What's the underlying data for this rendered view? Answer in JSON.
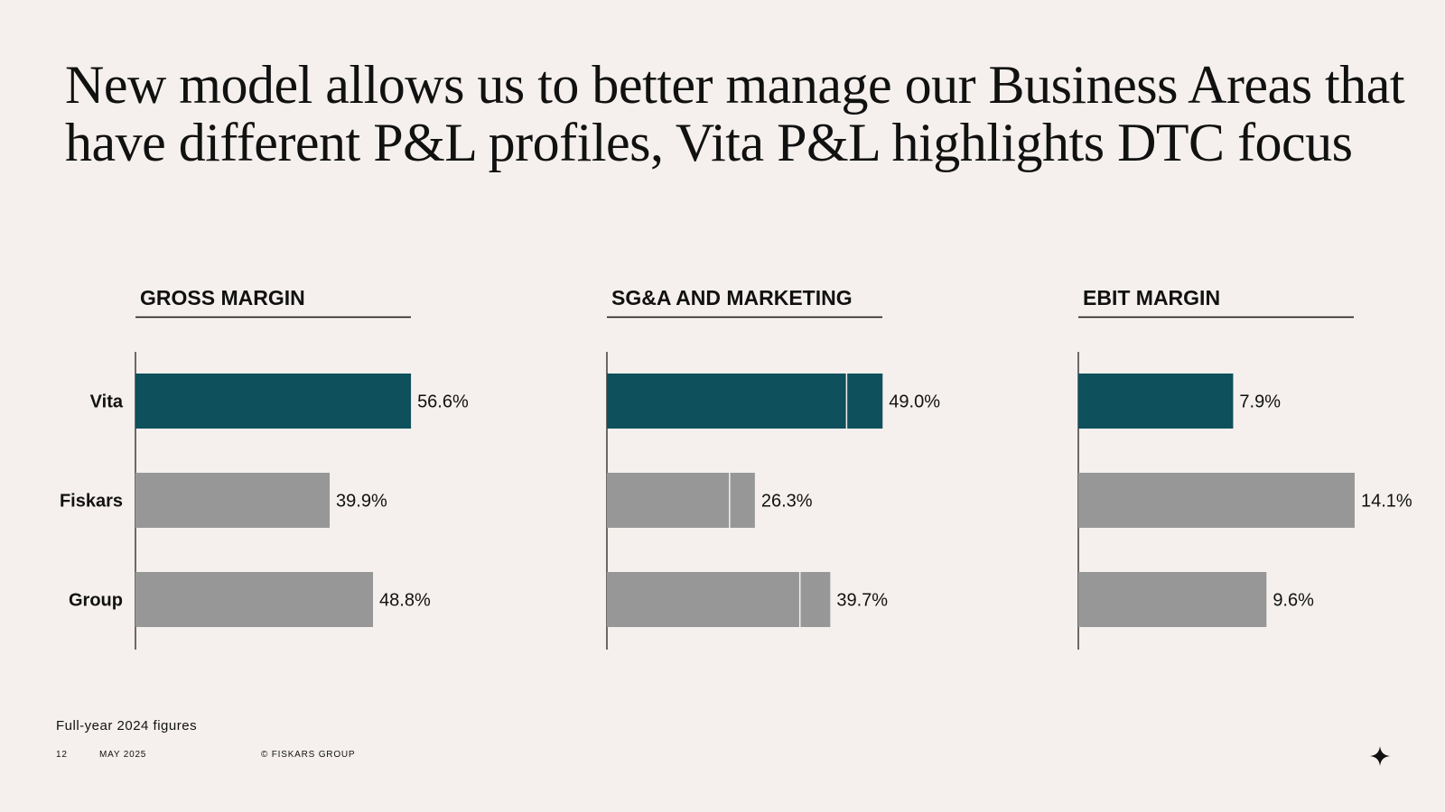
{
  "slide": {
    "title_line1": "New model allows us to better manage our Business Areas that",
    "title_line2": "have different P&L profiles, Vita P&L highlights DTC focus",
    "note": "Full-year 2024 figures",
    "page_number": "12",
    "date": "MAY 2025",
    "copyright": "© FISKARS GROUP",
    "logo_icon": "fiskars-star-icon"
  },
  "colors": {
    "highlight": "#0e505c",
    "neutral": "#979797",
    "background": "#f5f0ed"
  },
  "chart_data": [
    {
      "type": "bar",
      "orientation": "horizontal",
      "title": "GROSS MARGIN",
      "categories": [
        "Vita",
        "Fiskars",
        "Group"
      ],
      "values": [
        56.6,
        39.9,
        48.8
      ],
      "labels": [
        "56.6%",
        "39.9%",
        "48.8%"
      ],
      "highlight": [
        "Vita"
      ]
    },
    {
      "type": "bar",
      "orientation": "horizontal",
      "stacked": true,
      "title": "SG&A AND MARKETING",
      "categories": [
        "Vita",
        "Fiskars",
        "Group"
      ],
      "values": [
        49.0,
        26.3,
        39.7
      ],
      "segments": [
        [
          42.6,
          6.4
        ],
        [
          21.8,
          4.5
        ],
        [
          34.3,
          5.4
        ]
      ],
      "labels": [
        "49.0%",
        "26.3%",
        "39.7%"
      ],
      "highlight": [
        "Vita"
      ]
    },
    {
      "type": "bar",
      "orientation": "horizontal",
      "title": "EBIT MARGIN",
      "categories": [
        "Vita",
        "Fiskars",
        "Group"
      ],
      "values": [
        7.9,
        14.1,
        9.6
      ],
      "labels": [
        "7.9%",
        "14.1%",
        "9.6%"
      ],
      "highlight": [
        "Vita"
      ]
    }
  ]
}
